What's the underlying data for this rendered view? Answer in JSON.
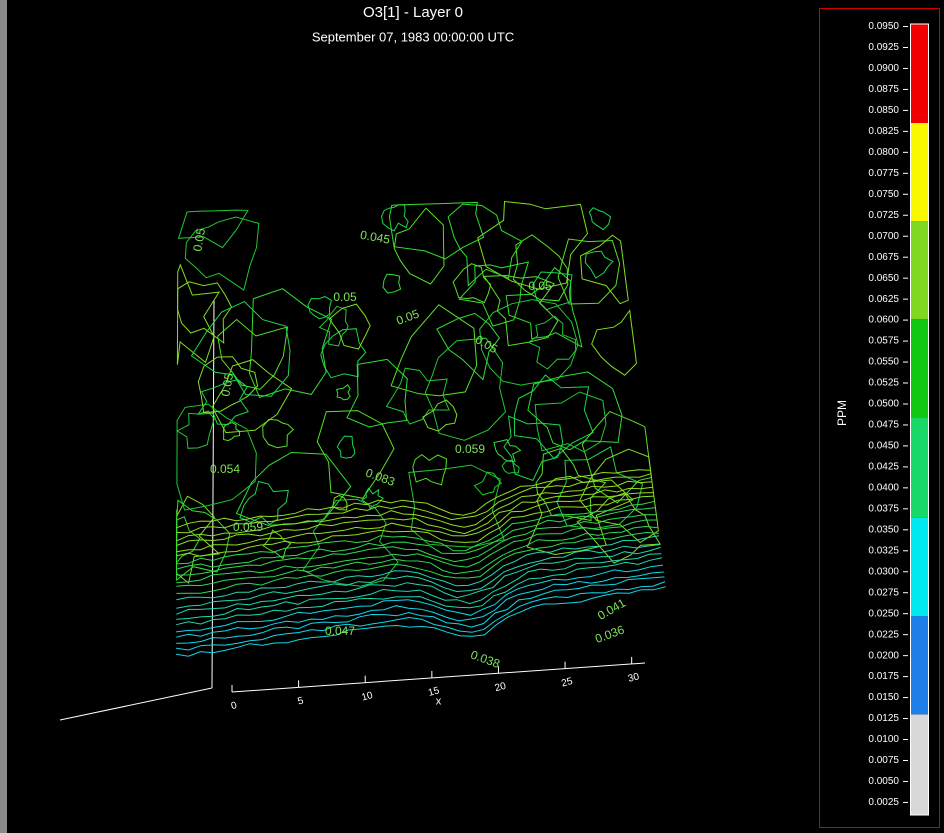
{
  "chart_data": {
    "type": "contour",
    "title": "O3[1] - Layer 0",
    "subtitle": "September 07, 1983 00:00:00 UTC",
    "x_label": "x",
    "xlim": [
      0,
      31
    ],
    "xticks": [
      0,
      5,
      10,
      15,
      20,
      25,
      30
    ],
    "contour_labels": [
      "0.05",
      "0.045",
      "0.05",
      "0.05",
      "0.05",
      "0.05",
      "0.05",
      "0.083",
      "0.059",
      "0.054",
      "0.059",
      "0.047",
      "0.041",
      "0.036",
      "0.038"
    ],
    "colorbar": {
      "label": "PPM",
      "bins": [
        0.001,
        0.013,
        0.0247,
        0.0365,
        0.0484,
        0.0601,
        0.0718,
        0.0835,
        0.0953
      ],
      "colors": [
        "#d8d8d8",
        "#1e7fe8",
        "#00e8f0",
        "#18d868",
        "#10c810",
        "#80d820",
        "#f8f800",
        "#f00000"
      ],
      "ticks": [
        {
          "value": 0.095,
          "label": "0.0950"
        },
        {
          "value": 0.0925,
          "label": "0.0925"
        },
        {
          "value": 0.09,
          "label": "0.0900"
        },
        {
          "value": 0.0875,
          "label": "0.0875"
        },
        {
          "value": 0.085,
          "label": "0.0850"
        },
        {
          "value": 0.0825,
          "label": "0.0825"
        },
        {
          "value": 0.08,
          "label": "0.0800"
        },
        {
          "value": 0.0775,
          "label": "0.0775"
        },
        {
          "value": 0.075,
          "label": "0.0750"
        },
        {
          "value": 0.0725,
          "label": "0.0725"
        },
        {
          "value": 0.07,
          "label": "0.0700"
        },
        {
          "value": 0.0675,
          "label": "0.0675"
        },
        {
          "value": 0.065,
          "label": "0.0650"
        },
        {
          "value": 0.0625,
          "label": "0.0625"
        },
        {
          "value": 0.06,
          "label": "0.0600"
        },
        {
          "value": 0.0575,
          "label": "0.0575"
        },
        {
          "value": 0.055,
          "label": "0.0550"
        },
        {
          "value": 0.0525,
          "label": "0.0525"
        },
        {
          "value": 0.05,
          "label": "0.0500"
        },
        {
          "value": 0.0475,
          "label": "0.0475"
        },
        {
          "value": 0.045,
          "label": "0.0450"
        },
        {
          "value": 0.0425,
          "label": "0.0425"
        },
        {
          "value": 0.04,
          "label": "0.0400"
        },
        {
          "value": 0.0375,
          "label": "0.0375"
        },
        {
          "value": 0.035,
          "label": "0.0350"
        },
        {
          "value": 0.0325,
          "label": "0.0325"
        },
        {
          "value": 0.03,
          "label": "0.0300"
        },
        {
          "value": 0.0275,
          "label": "0.0275"
        },
        {
          "value": 0.025,
          "label": "0.0250"
        },
        {
          "value": 0.0225,
          "label": "0.0225"
        },
        {
          "value": 0.02,
          "label": "0.0200"
        },
        {
          "value": 0.0175,
          "label": "0.0175"
        },
        {
          "value": 0.015,
          "label": "0.0150"
        },
        {
          "value": 0.0125,
          "label": "0.0125"
        },
        {
          "value": 0.01,
          "label": "0.0100"
        },
        {
          "value": 0.0075,
          "label": "0.0075"
        },
        {
          "value": 0.005,
          "label": "0.0050"
        },
        {
          "value": 0.0025,
          "label": "0.0025"
        }
      ]
    }
  }
}
